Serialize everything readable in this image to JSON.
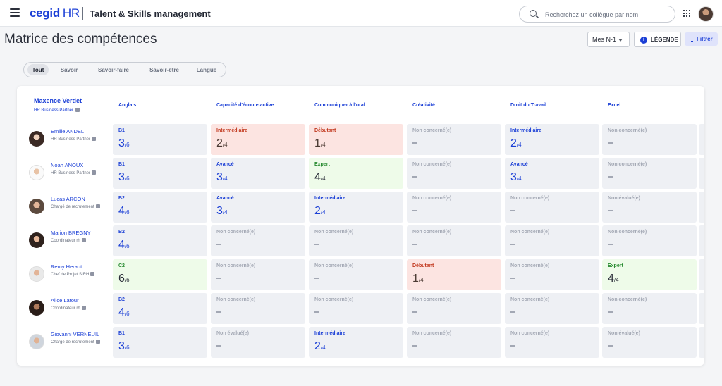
{
  "topbar": {
    "brand": "cegid",
    "brand_suffix": "HR",
    "product": "Talent & Skills management",
    "search_placeholder": "Recherchez un collègue par nom"
  },
  "header": {
    "title": "Matrice des compétences",
    "scope_select": "Mes N-1",
    "legend_label": "LÉGENDE",
    "filter_label": "Filtrer"
  },
  "tabs": [
    "Tout",
    "Savoir",
    "Savoir-faire",
    "Savoir-être",
    "Langue"
  ],
  "active_tab": "Tout",
  "manager": {
    "name": "Maxence Verdet",
    "role": "HR Business Partner"
  },
  "columns": [
    "Anglais",
    "Capacité d'écoute active",
    "Communiquer à l'oral",
    "Créativité",
    "Droit du Travail",
    "Excel"
  ],
  "employees": [
    {
      "name": "Emilie ANDEL",
      "role": "HR Business Partner",
      "cells": [
        {
          "label": "B1",
          "score": "3",
          "max": "/6",
          "type": "level"
        },
        {
          "label": "Intermédiaire",
          "score": "2",
          "max": "/4",
          "type": "debutant"
        },
        {
          "label": "Débutant",
          "score": "1",
          "max": "/4",
          "type": "debutant"
        },
        {
          "label": "Non concerné(e)",
          "type": "na"
        },
        {
          "label": "Intermédiaire",
          "score": "2",
          "max": "/4",
          "type": "level"
        },
        {
          "label": "Non concerné(e)",
          "type": "na"
        }
      ]
    },
    {
      "name": "Noah ANOUX",
      "role": "HR Business Partner",
      "cells": [
        {
          "label": "B1",
          "score": "3",
          "max": "/6",
          "type": "level"
        },
        {
          "label": "Avancé",
          "score": "3",
          "max": "/4",
          "type": "level"
        },
        {
          "label": "Expert",
          "score": "4",
          "max": "/4",
          "type": "expert"
        },
        {
          "label": "Non concerné(e)",
          "type": "na"
        },
        {
          "label": "Avancé",
          "score": "3",
          "max": "/4",
          "type": "level"
        },
        {
          "label": "Non concerné(e)",
          "type": "na"
        }
      ]
    },
    {
      "name": "Lucas ARCON",
      "role": "Chargé de recrutement",
      "cells": [
        {
          "label": "B2",
          "score": "4",
          "max": "/6",
          "type": "level"
        },
        {
          "label": "Avancé",
          "score": "3",
          "max": "/4",
          "type": "level"
        },
        {
          "label": "Intermédiaire",
          "score": "2",
          "max": "/4",
          "type": "level"
        },
        {
          "label": "Non concerné(e)",
          "type": "na"
        },
        {
          "label": "Non concerné(e)",
          "type": "na"
        },
        {
          "label": "Non évalué(e)",
          "type": "na"
        }
      ]
    },
    {
      "name": "Marion BREGNY",
      "role": "Coordinateur rh",
      "cells": [
        {
          "label": "B2",
          "score": "4",
          "max": "/6",
          "type": "level"
        },
        {
          "label": "Non concerné(e)",
          "type": "na"
        },
        {
          "label": "Non concerné(e)",
          "type": "na"
        },
        {
          "label": "Non concerné(e)",
          "type": "na"
        },
        {
          "label": "Non concerné(e)",
          "type": "na"
        },
        {
          "label": "Non concerné(e)",
          "type": "na"
        }
      ]
    },
    {
      "name": "Remy Heraut",
      "role": "Chef de Projet SIRH",
      "cells": [
        {
          "label": "C2",
          "score": "6",
          "max": "/6",
          "type": "expert"
        },
        {
          "label": "Non concerné(e)",
          "type": "na"
        },
        {
          "label": "Non concerné(e)",
          "type": "na"
        },
        {
          "label": "Débutant",
          "score": "1",
          "max": "/4",
          "type": "debutant"
        },
        {
          "label": "Non concerné(e)",
          "type": "na"
        },
        {
          "label": "Expert",
          "score": "4",
          "max": "/4",
          "type": "expert"
        }
      ]
    },
    {
      "name": "Alice Latour",
      "role": "Coordinateur rh",
      "cells": [
        {
          "label": "B2",
          "score": "4",
          "max": "/6",
          "type": "level"
        },
        {
          "label": "Non concerné(e)",
          "type": "na"
        },
        {
          "label": "Non concerné(e)",
          "type": "na"
        },
        {
          "label": "Non concerné(e)",
          "type": "na"
        },
        {
          "label": "Non concerné(e)",
          "type": "na"
        },
        {
          "label": "Non concerné(e)",
          "type": "na"
        }
      ]
    },
    {
      "name": "Giovanni VERNEUIL",
      "role": "Chargé de recrutement",
      "cells": [
        {
          "label": "B1",
          "score": "3",
          "max": "/6",
          "type": "level"
        },
        {
          "label": "Non évalué(e)",
          "type": "na"
        },
        {
          "label": "Intermédiaire",
          "score": "2",
          "max": "/4",
          "type": "level"
        },
        {
          "label": "Non concerné(e)",
          "type": "na"
        },
        {
          "label": "Non concerné(e)",
          "type": "na"
        },
        {
          "label": "Non évalué(e)",
          "type": "na"
        }
      ]
    }
  ],
  "icons": {
    "menu": "hamburger-icon",
    "search": "search-icon",
    "apps": "apps-grid-icon",
    "info": "info-icon",
    "filter": "filter-icon",
    "building": "building-icon"
  },
  "colors": {
    "accent": "#1b3fd6",
    "debutant_bg": "#fce4e1",
    "expert_bg": "#eefbe9",
    "neutral_bg": "#eef0f4"
  }
}
